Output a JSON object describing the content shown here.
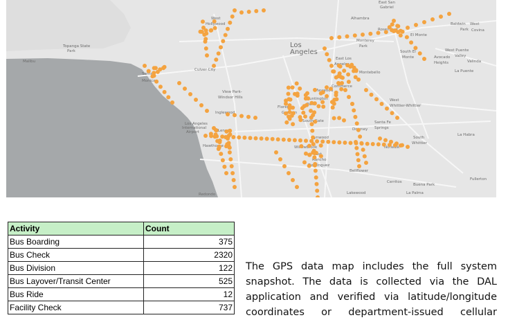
{
  "map": {
    "labels": [
      {
        "text": "West",
        "cls": "s"
      },
      {
        "text": "Hollywood",
        "cls": "s"
      },
      {
        "text": "Los",
        "cls": "l"
      },
      {
        "text": "Angeles",
        "cls": "l"
      },
      {
        "text": "Alhambra",
        "cls": "s"
      },
      {
        "text": "Rosemead",
        "cls": "s"
      },
      {
        "text": "El Monte",
        "cls": "s"
      },
      {
        "text": "Baldwin",
        "cls": "s"
      },
      {
        "text": "Park",
        "cls": "s"
      },
      {
        "text": "West",
        "cls": "s"
      },
      {
        "text": "Covina",
        "cls": "s"
      },
      {
        "text": "Monterey",
        "cls": "s"
      },
      {
        "text": "Park",
        "cls": "s"
      },
      {
        "text": "South El",
        "cls": "s"
      },
      {
        "text": "Monte",
        "cls": "s"
      },
      {
        "text": "West Puente",
        "cls": "s"
      },
      {
        "text": "Valley",
        "cls": "s"
      },
      {
        "text": "Avocado",
        "cls": "s"
      },
      {
        "text": "Heights",
        "cls": "s"
      },
      {
        "text": "Valinda",
        "cls": "s"
      },
      {
        "text": "La Puente",
        "cls": "s"
      },
      {
        "text": "East Los",
        "cls": "s"
      },
      {
        "text": "Angeles",
        "cls": "s"
      },
      {
        "text": "Montebello",
        "cls": "s"
      },
      {
        "text": "Commerce",
        "cls": "s"
      },
      {
        "text": "Culver City",
        "cls": "s"
      },
      {
        "text": "Malibu",
        "cls": "s"
      },
      {
        "text": "Santa",
        "cls": "s"
      },
      {
        "text": "Monica",
        "cls": "s"
      },
      {
        "text": "View Park-",
        "cls": "s"
      },
      {
        "text": "Windsor Hills",
        "cls": "s"
      },
      {
        "text": "Maywood",
        "cls": "s"
      },
      {
        "text": "Huntington",
        "cls": "s"
      },
      {
        "text": "Park",
        "cls": "s"
      },
      {
        "text": "Florence-",
        "cls": "s"
      },
      {
        "text": "Graham",
        "cls": "s"
      },
      {
        "text": "West",
        "cls": "s"
      },
      {
        "text": "Whittier-Whittier",
        "cls": "s"
      },
      {
        "text": "Inglewood",
        "cls": "s"
      },
      {
        "text": "South Gate",
        "cls": "s"
      },
      {
        "text": "Santa Fe",
        "cls": "s"
      },
      {
        "text": "Springs",
        "cls": "s"
      },
      {
        "text": "Los Angeles",
        "cls": "s"
      },
      {
        "text": "International",
        "cls": "s"
      },
      {
        "text": "Airport",
        "cls": "s"
      },
      {
        "text": "Lennox",
        "cls": "s"
      },
      {
        "text": "Downey",
        "cls": "s"
      },
      {
        "text": "Lynwood",
        "cls": "s"
      },
      {
        "text": "South",
        "cls": "s"
      },
      {
        "text": "Whittier",
        "cls": "s"
      },
      {
        "text": "La Habra",
        "cls": "s"
      },
      {
        "text": "Hawthorne",
        "cls": "s"
      },
      {
        "text": "Willowbrook",
        "cls": "s"
      },
      {
        "text": "Norwalk",
        "cls": "s"
      },
      {
        "text": "East",
        "cls": "s"
      },
      {
        "text": "Rancho",
        "cls": "s"
      },
      {
        "text": "Dominguez",
        "cls": "s"
      },
      {
        "text": "Bellflower",
        "cls": "s"
      },
      {
        "text": "Fullerton",
        "cls": "s"
      },
      {
        "text": "Cerritos",
        "cls": "s"
      },
      {
        "text": "Buena Park",
        "cls": "s"
      },
      {
        "text": "Lakewood",
        "cls": "s"
      },
      {
        "text": "La Palma",
        "cls": "s"
      },
      {
        "text": "Redondo",
        "cls": "s"
      },
      {
        "text": "Topanga State",
        "cls": "s"
      },
      {
        "text": "Park",
        "cls": "s"
      },
      {
        "text": "East San",
        "cls": "s"
      },
      {
        "text": "Gabriel",
        "cls": "s"
      }
    ],
    "colors": {
      "land": "#e6e6e6",
      "ocean": "#a5a8aa",
      "road": "#f7f7f7",
      "marker": "#f4a340"
    }
  },
  "table": {
    "headers": [
      "Activity",
      "Count"
    ],
    "rows": [
      {
        "activity": "Bus Boarding",
        "count": "375"
      },
      {
        "activity": "Bus Check",
        "count": "2320"
      },
      {
        "activity": "Bus Division",
        "count": "122"
      },
      {
        "activity": "Bus Layover/Transit Center",
        "count": "525"
      },
      {
        "activity": "Bus Ride",
        "count": "12"
      },
      {
        "activity": "Facility Check",
        "count": "737"
      }
    ]
  },
  "paragraph": "The GPS data map includes the full system snapshot. The data is collected via the DAL application and verified via latitude/longitude coordinates or department-issued cellular"
}
